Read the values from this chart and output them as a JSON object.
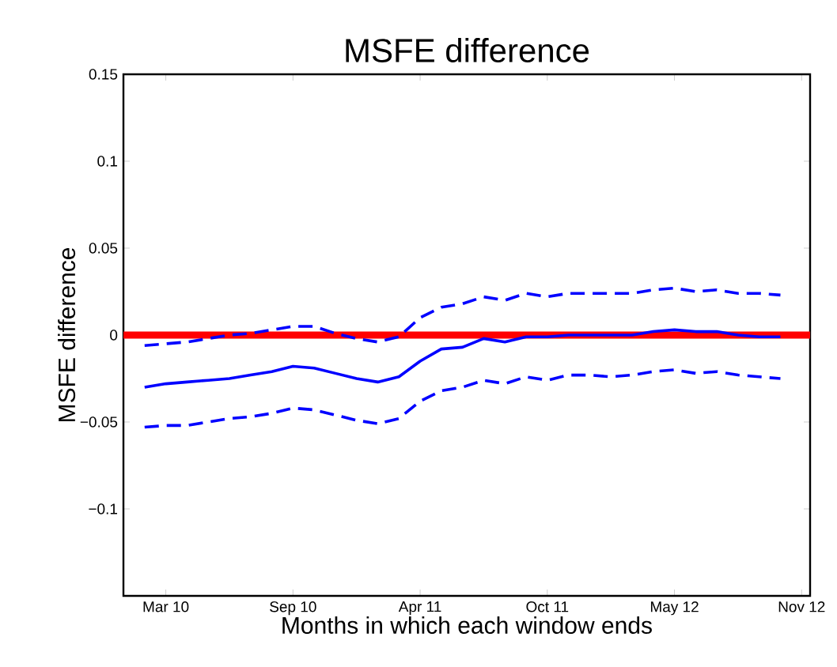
{
  "chart_data": {
    "type": "line",
    "title": "MSFE difference",
    "xlabel": "Months in which each window ends",
    "ylabel": "MSFE difference",
    "categories": [
      null,
      "Mar 10",
      null,
      null,
      null,
      null,
      null,
      "Sep 10",
      null,
      null,
      null,
      null,
      null,
      "Apr 11",
      null,
      null,
      null,
      null,
      null,
      "Oct 11",
      null,
      null,
      null,
      null,
      null,
      "May 12",
      null,
      null,
      null,
      null,
      null,
      "Nov 12"
    ],
    "series": [
      {
        "color": "#0000ff",
        "line_style": "solid",
        "values": [
          -0.03,
          -0.028,
          -0.027,
          -0.026,
          -0.025,
          -0.023,
          -0.021,
          -0.018,
          -0.019,
          -0.022,
          -0.025,
          -0.027,
          -0.024,
          -0.015,
          -0.008,
          -0.007,
          -0.002,
          -0.004,
          -0.001,
          -0.001,
          0,
          0,
          0,
          0,
          0.002,
          0.003,
          0.002,
          0.002,
          0,
          -0.001,
          -0.001,
          null
        ]
      },
      {
        "color": "#0000ff",
        "line_style": "dashed",
        "values": [
          -0.006,
          -0.005,
          -0.004,
          -0.002,
          0,
          0.001,
          0.003,
          0.005,
          0.005,
          0.001,
          -0.002,
          -0.004,
          -0.001,
          0.01,
          0.016,
          0.018,
          0.022,
          0.02,
          0.024,
          0.022,
          0.024,
          0.024,
          0.024,
          0.024,
          0.026,
          0.027,
          0.025,
          0.026,
          0.024,
          0.024,
          0.023,
          null
        ]
      },
      {
        "color": "#0000ff",
        "line_style": "dashed",
        "values": [
          -0.053,
          -0.052,
          -0.052,
          -0.05,
          -0.048,
          -0.047,
          -0.045,
          -0.042,
          -0.043,
          -0.046,
          -0.049,
          -0.051,
          -0.048,
          -0.038,
          -0.032,
          -0.03,
          -0.026,
          -0.028,
          -0.024,
          -0.026,
          -0.023,
          -0.023,
          -0.024,
          -0.023,
          -0.021,
          -0.02,
          -0.022,
          -0.021,
          -0.023,
          -0.024,
          -0.025,
          null
        ]
      }
    ],
    "ref_lines": [
      {
        "axis": "y",
        "value": 0,
        "color": "#ff0000",
        "line_style": "solid"
      }
    ],
    "ylim": [
      -0.15,
      0.15
    ],
    "yticks": [
      {
        "value": -0.1,
        "label": "−0.1"
      },
      {
        "value": -0.05,
        "label": "−0.05"
      },
      0,
      0.05,
      0.1,
      0.15
    ],
    "grid": false
  }
}
